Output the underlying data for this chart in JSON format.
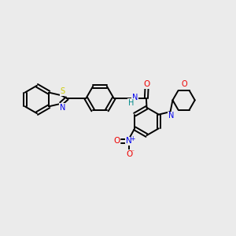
{
  "background_color": "#ebebeb",
  "bond_color": "#000000",
  "atom_colors": {
    "S": "#cccc00",
    "N": "#0000ee",
    "O": "#ee0000",
    "H": "#008b8b",
    "C": "#000000"
  },
  "figsize": [
    3.0,
    3.0
  ],
  "dpi": 100,
  "xlim": [
    0,
    10
  ],
  "ylim": [
    0,
    10
  ]
}
